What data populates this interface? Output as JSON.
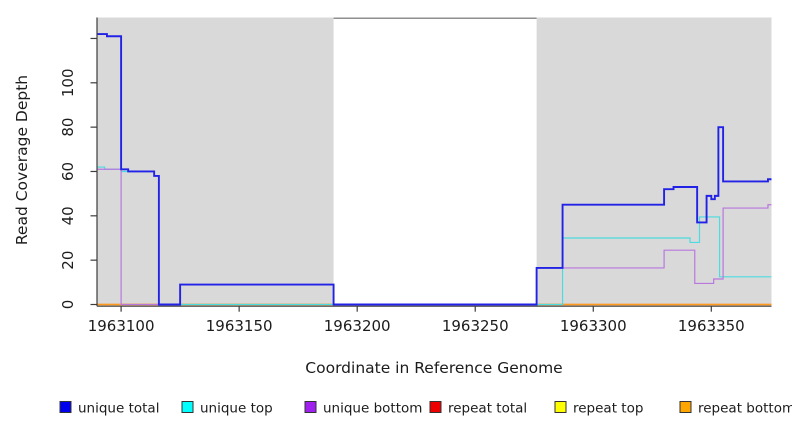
{
  "chart_data": {
    "type": "line",
    "subtype": "step-coverage",
    "title": "",
    "xlabel": "Coordinate in Reference Genome",
    "ylabel": "Read Coverage Depth",
    "x_range": [
      1963090,
      1963375.5
    ],
    "ylim": [
      0,
      129
    ],
    "x_ticks": [
      1963100,
      1963150,
      1963200,
      1963250,
      1963300,
      1963350
    ],
    "y_ticks": [
      0,
      20,
      40,
      60,
      80,
      100,
      120
    ],
    "y_tick_labels": [
      "0",
      "20",
      "40",
      "60",
      "80",
      "100",
      ""
    ],
    "grid": false,
    "background_color": "#ffffff",
    "shade_color": "#d9d9d9",
    "gap_top_line_color": "#8f8f8f",
    "axis_color": "#3c3c3c",
    "shaded_regions": [
      [
        1963090,
        1963190
      ],
      [
        1963276,
        1963375.5
      ]
    ],
    "white_gap_region": [
      1963190,
      1963276
    ],
    "series": [
      {
        "name": "repeat total",
        "color": "#ee0000",
        "line_color": "#e8334e",
        "width": 1.2,
        "points": [
          [
            1963090,
            0
          ],
          [
            1963375.5,
            0
          ]
        ]
      },
      {
        "name": "repeat top",
        "color": "#ffff00",
        "line_color": "#f2e640",
        "width": 1.2,
        "points": [
          [
            1963090,
            0
          ],
          [
            1963375.5,
            0
          ]
        ]
      },
      {
        "name": "repeat bottom",
        "color": "#ffa500",
        "line_color": "#ff9a1f",
        "width": 1.6,
        "points": [
          [
            1963090,
            0
          ],
          [
            1963375.5,
            0
          ]
        ]
      },
      {
        "name": "unique top",
        "color": "#00ffff",
        "line_color": "#4cdcdf",
        "width": 1.2,
        "points": [
          [
            1963090,
            62
          ],
          [
            1963093,
            61
          ],
          [
            1963100,
            60
          ],
          [
            1963114,
            58
          ],
          [
            1963116,
            0
          ],
          [
            1963287,
            30
          ],
          [
            1963341,
            28
          ],
          [
            1963345,
            39.5
          ],
          [
            1963353.5,
            12.5
          ],
          [
            1963375.5,
            12.5
          ]
        ]
      },
      {
        "name": "unique bottom",
        "color": "#a020f0",
        "line_color": "#b878de",
        "width": 1.2,
        "points": [
          [
            1963090,
            61
          ],
          [
            1963100,
            0
          ],
          [
            1963125,
            9
          ],
          [
            1963190,
            0
          ],
          [
            1963276,
            16.5
          ],
          [
            1963330,
            24.5
          ],
          [
            1963343,
            9.5
          ],
          [
            1963351,
            11.5
          ],
          [
            1963355,
            43.5
          ],
          [
            1963374,
            45
          ],
          [
            1963375.5,
            45
          ]
        ]
      },
      {
        "name": "unique total",
        "color": "#0000ee",
        "line_color": "#2222e6",
        "width": 1.9,
        "points": [
          [
            1963090,
            122
          ],
          [
            1963094,
            121
          ],
          [
            1963100,
            61
          ],
          [
            1963103,
            60
          ],
          [
            1963114,
            58
          ],
          [
            1963116,
            0
          ],
          [
            1963125,
            9
          ],
          [
            1963190,
            0
          ],
          [
            1963276,
            16.5
          ],
          [
            1963287,
            45
          ],
          [
            1963330,
            52
          ],
          [
            1963334,
            53
          ],
          [
            1963344,
            37
          ],
          [
            1963348,
            49
          ],
          [
            1963350,
            47.5
          ],
          [
            1963351.5,
            49
          ],
          [
            1963353,
            80
          ],
          [
            1963355,
            55.5
          ],
          [
            1963374,
            56.5
          ],
          [
            1963375.5,
            56.5
          ]
        ]
      }
    ],
    "legend": {
      "position": "bottom",
      "items": [
        {
          "label": "unique total",
          "color": "#0000ee"
        },
        {
          "label": "unique top",
          "color": "#00ffff"
        },
        {
          "label": "unique bottom",
          "color": "#a020f0"
        },
        {
          "label": "repeat total",
          "color": "#ee0000"
        },
        {
          "label": "repeat top",
          "color": "#ffff00"
        },
        {
          "label": "repeat bottom",
          "color": "#ffa500"
        }
      ]
    }
  }
}
